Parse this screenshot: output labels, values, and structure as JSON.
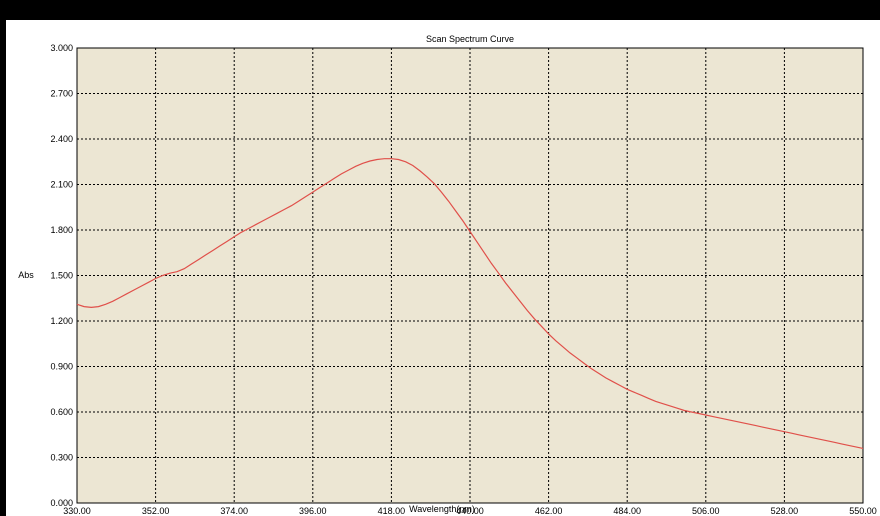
{
  "chart_data": {
    "type": "line",
    "title": "Scan Spectrum Curve",
    "xlabel": "Wavelength(nm)",
    "ylabel": "Abs",
    "xlim": [
      330,
      550
    ],
    "ylim": [
      0,
      3
    ],
    "grid": true,
    "x_ticks": [
      "330.00",
      "352.00",
      "374.00",
      "396.00",
      "418.00",
      "440.00",
      "462.00",
      "484.00",
      "506.00",
      "528.00",
      "550.00"
    ],
    "y_ticks": [
      "0.000",
      "0.300",
      "0.600",
      "0.900",
      "1.200",
      "1.500",
      "1.800",
      "2.100",
      "2.400",
      "2.700",
      "3.000"
    ],
    "colors": {
      "plot_background": "#ece6d3",
      "line": "#e0504a",
      "grid": "#000000"
    },
    "series": [
      {
        "x": [
          330,
          332,
          334,
          336,
          338,
          340,
          342,
          344,
          346,
          348,
          350,
          352,
          354,
          356,
          358,
          360,
          362,
          364,
          366,
          368,
          370,
          372,
          374,
          376,
          378,
          380,
          382,
          384,
          386,
          388,
          390,
          392,
          394,
          396,
          398,
          400,
          402,
          404,
          406,
          408,
          410,
          412,
          414,
          416,
          418,
          420,
          422,
          424,
          426,
          428,
          430,
          432,
          434,
          436,
          438,
          440,
          442,
          444,
          446,
          448,
          450,
          452,
          454,
          456,
          458,
          460,
          462,
          464,
          466,
          468,
          470,
          472,
          474,
          476,
          478,
          480,
          482,
          484,
          486,
          488,
          490,
          492,
          494,
          496,
          498,
          500,
          502,
          504,
          506,
          508,
          510,
          512,
          514,
          516,
          518,
          520,
          522,
          524,
          526,
          528,
          530,
          532,
          534,
          536,
          538,
          540,
          542,
          544,
          546,
          548,
          550
        ],
        "values": [
          1.31,
          1.295,
          1.29,
          1.295,
          1.31,
          1.33,
          1.355,
          1.38,
          1.405,
          1.43,
          1.455,
          1.48,
          1.5,
          1.515,
          1.525,
          1.545,
          1.575,
          1.605,
          1.635,
          1.665,
          1.695,
          1.725,
          1.755,
          1.785,
          1.81,
          1.835,
          1.86,
          1.885,
          1.91,
          1.935,
          1.96,
          1.99,
          2.02,
          2.05,
          2.08,
          2.11,
          2.14,
          2.17,
          2.195,
          2.22,
          2.24,
          2.255,
          2.265,
          2.27,
          2.27,
          2.265,
          2.25,
          2.225,
          2.19,
          2.15,
          2.105,
          2.05,
          1.99,
          1.925,
          1.86,
          1.79,
          1.72,
          1.65,
          1.58,
          1.515,
          1.45,
          1.39,
          1.33,
          1.27,
          1.215,
          1.165,
          1.115,
          1.07,
          1.03,
          0.99,
          0.955,
          0.92,
          0.885,
          0.855,
          0.825,
          0.8,
          0.775,
          0.75,
          0.73,
          0.71,
          0.69,
          0.67,
          0.655,
          0.64,
          0.625,
          0.61,
          0.6,
          0.59,
          0.58,
          0.57,
          0.56,
          0.55,
          0.54,
          0.53,
          0.52,
          0.51,
          0.5,
          0.49,
          0.48,
          0.47,
          0.46,
          0.45,
          0.44,
          0.43,
          0.42,
          0.41,
          0.4,
          0.39,
          0.38,
          0.37,
          0.36
        ]
      }
    ]
  }
}
